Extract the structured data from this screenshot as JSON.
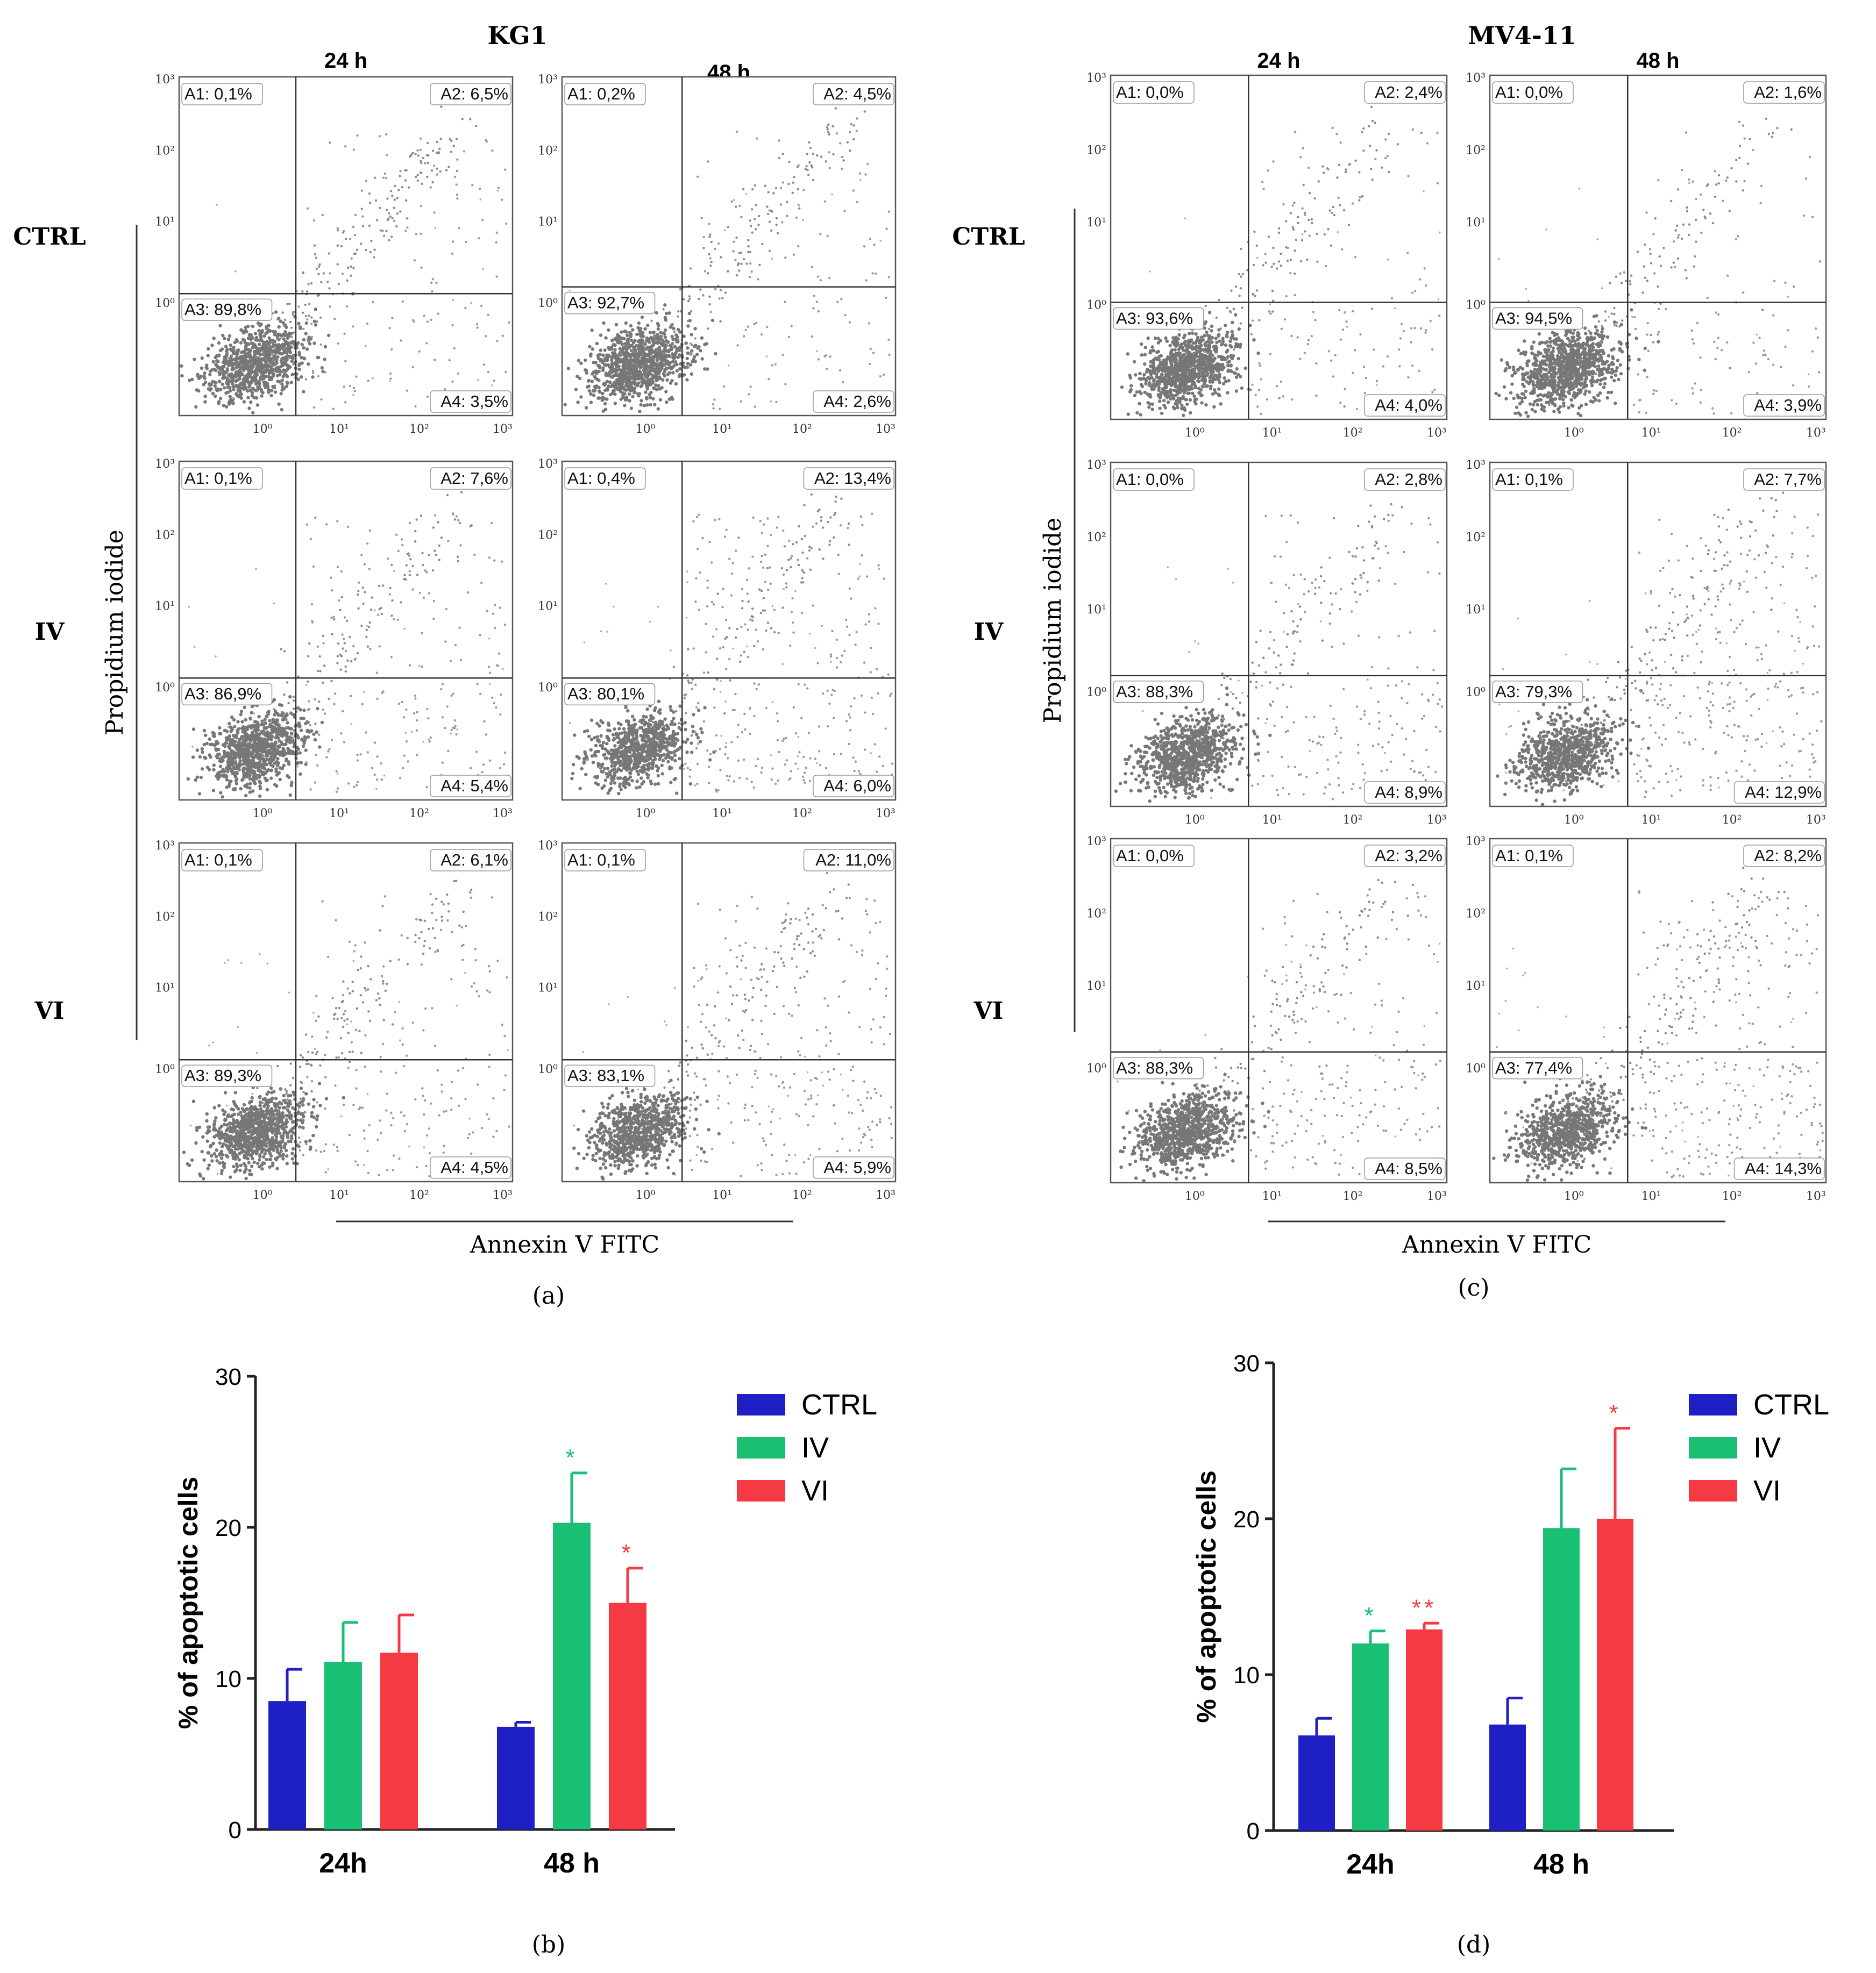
{
  "chart_data": [
    {
      "type": "scatter",
      "panel_label": "(a)",
      "title": "KG1",
      "time_labels": [
        "24 h",
        "48 h"
      ],
      "row_labels": [
        "CTRL",
        "IV",
        "VI"
      ],
      "ylabel": "Propidium iodide",
      "xlabel": "Annexin V FITC",
      "tick_labels": [
        "10⁰",
        "10¹",
        "10²",
        "10³"
      ],
      "plots": [
        {
          "row": "CTRL",
          "time": "24 h",
          "gate": [
            0.55,
            0.36
          ],
          "labels": {
            "A1": "A1: 0,1%",
            "A2": "A2: 6,5%",
            "A3": "A3: 89,8%",
            "A4": "A4: 3,5%"
          },
          "density": [
            0.8,
            0.7,
            0.3,
            0.3,
            0.15
          ]
        },
        {
          "row": "CTRL",
          "time": "48 h",
          "gate": [
            0.33,
            0.38
          ],
          "labels": {
            "A1": "A1: 0,2%",
            "A2": "A2: 4,5%",
            "A3": "A3: 92,7%",
            "A4": "A4: 2,6%"
          },
          "density": [
            0.9,
            0.6,
            0.25,
            0.25,
            0.12
          ]
        },
        {
          "row": "IV",
          "time": "24 h",
          "gate": [
            0.35,
            0.36
          ],
          "labels": {
            "A1": "A1: 0,1%",
            "A2": "A2: 7,6%",
            "A3": "A3: 86,9%",
            "A4": "A4: 5,4%"
          },
          "density": [
            0.85,
            0.5,
            0.45,
            0.35,
            0.3
          ]
        },
        {
          "row": "IV",
          "time": "48 h",
          "gate": [
            0.36,
            0.36
          ],
          "labels": {
            "A1": "A1: 0,4%",
            "A2": "A2: 13,4%",
            "A3": "A3: 80,1%",
            "A4": "A4: 6,0%"
          },
          "density": [
            0.7,
            0.4,
            0.6,
            0.55,
            0.4
          ]
        },
        {
          "row": "VI",
          "time": "24 h",
          "gate": [
            0.35,
            0.36
          ],
          "labels": {
            "A1": "A1: 0,1%",
            "A2": "A2: 6,1%",
            "A3": "A3: 89,3%",
            "A4": "A4: 4,5%"
          },
          "density": [
            0.85,
            0.5,
            0.45,
            0.3,
            0.3
          ]
        },
        {
          "row": "VI",
          "time": "48 h",
          "gate": [
            0.36,
            0.36
          ],
          "labels": {
            "A1": "A1: 0,1%",
            "A2": "A2: 11,0%",
            "A3": "A3: 83,1%",
            "A4": "A4: 5,9%"
          },
          "density": [
            0.75,
            0.45,
            0.55,
            0.45,
            0.35
          ]
        }
      ]
    },
    {
      "type": "bar",
      "panel_label": "(b)",
      "categories": [
        "24h",
        "48 h"
      ],
      "series": [
        {
          "name": "CTRL",
          "color": "#1f1fc6",
          "values": [
            8.5,
            6.8
          ],
          "errors": [
            2.1,
            0.3
          ],
          "sig": [
            "",
            ""
          ]
        },
        {
          "name": "IV",
          "color": "#19bf72",
          "values": [
            11.1,
            20.3
          ],
          "errors": [
            2.6,
            3.3
          ],
          "sig": [
            "",
            "*"
          ]
        },
        {
          "name": "VI",
          "color": "#f53a44",
          "values": [
            11.7,
            15.0
          ],
          "errors": [
            2.5,
            2.3
          ],
          "sig": [
            "",
            "*"
          ]
        }
      ],
      "ylabel": "% of apoptotic cells",
      "ylim": [
        0,
        30
      ],
      "yticks": [
        0,
        10,
        20,
        30
      ]
    },
    {
      "type": "scatter",
      "panel_label": "(c)",
      "title": "MV4-11",
      "time_labels": [
        "24 h",
        "48 h"
      ],
      "row_labels": [
        "CTRL",
        "IV",
        "VI"
      ],
      "ylabel": "Propidium iodide",
      "xlabel": "Annexin V FITC",
      "tick_labels": [
        "10⁰",
        "10¹",
        "10²",
        "10³"
      ],
      "tick_label_last_alt": "10",
      "plots": [
        {
          "row": "CTRL",
          "time": "24 h",
          "gate": [
            0.41,
            0.34
          ],
          "labels": {
            "A1": "A1: 0,0%",
            "A2": "A2: 2,4%",
            "A3": "A3: 93,6%",
            "A4": "A4: 4,0%"
          },
          "density": [
            0.9,
            0.5,
            0.35,
            0.2,
            0.15
          ]
        },
        {
          "row": "CTRL",
          "time": "48 h",
          "gate": [
            0.41,
            0.34
          ],
          "labels": {
            "A1": "A1: 0,0%",
            "A2": "A2: 1,6%",
            "A3": "A3: 94,5%",
            "A4": "A4: 3,9%"
          },
          "density": [
            0.9,
            0.4,
            0.3,
            0.15,
            0.12
          ]
        },
        {
          "row": "IV",
          "time": "24 h",
          "gate": [
            0.41,
            0.38
          ],
          "labels": {
            "A1": "A1: 0,0%",
            "A2": "A2: 2,8%",
            "A3": "A3: 88,3%",
            "A4": "A4: 8,9%"
          },
          "density": [
            0.85,
            0.4,
            0.55,
            0.25,
            0.2
          ]
        },
        {
          "row": "IV",
          "time": "48 h",
          "gate": [
            0.41,
            0.38
          ],
          "labels": {
            "A1": "A1: 0,1%",
            "A2": "A2: 7,7%",
            "A3": "A3: 79,3%",
            "A4": "A4: 12,9%"
          },
          "density": [
            0.75,
            0.5,
            0.7,
            0.45,
            0.4
          ]
        },
        {
          "row": "VI",
          "time": "24 h",
          "gate": [
            0.41,
            0.38
          ],
          "labels": {
            "A1": "A1: 0,0%",
            "A2": "A2: 3,2%",
            "A3": "A3: 88,3%",
            "A4": "A4: 8,5%"
          },
          "density": [
            0.85,
            0.45,
            0.55,
            0.25,
            0.25
          ]
        },
        {
          "row": "VI",
          "time": "48 h",
          "gate": [
            0.41,
            0.38
          ],
          "labels": {
            "A1": "A1: 0,1%",
            "A2": "A2: 8,2%",
            "A3": "A3: 77,4%",
            "A4": "A4: 14,3%"
          },
          "density": [
            0.75,
            0.5,
            0.75,
            0.5,
            0.4
          ]
        }
      ]
    },
    {
      "type": "bar",
      "panel_label": "(d)",
      "categories": [
        "24h",
        "48 h"
      ],
      "series": [
        {
          "name": "CTRL",
          "color": "#1f1fc6",
          "values": [
            6.1,
            6.8
          ],
          "errors": [
            1.1,
            1.7
          ],
          "sig": [
            "",
            ""
          ]
        },
        {
          "name": "IV",
          "color": "#19bf72",
          "values": [
            12.0,
            19.4
          ],
          "errors": [
            0.8,
            3.8
          ],
          "sig": [
            "*",
            ""
          ]
        },
        {
          "name": "VI",
          "color": "#f53a44",
          "values": [
            12.9,
            20.0
          ],
          "errors": [
            0.4,
            5.8
          ],
          "sig": [
            "**",
            "*"
          ]
        }
      ],
      "ylabel": "% of apoptotic cells",
      "ylim": [
        0,
        30
      ],
      "yticks": [
        0,
        10,
        20,
        30
      ]
    }
  ]
}
